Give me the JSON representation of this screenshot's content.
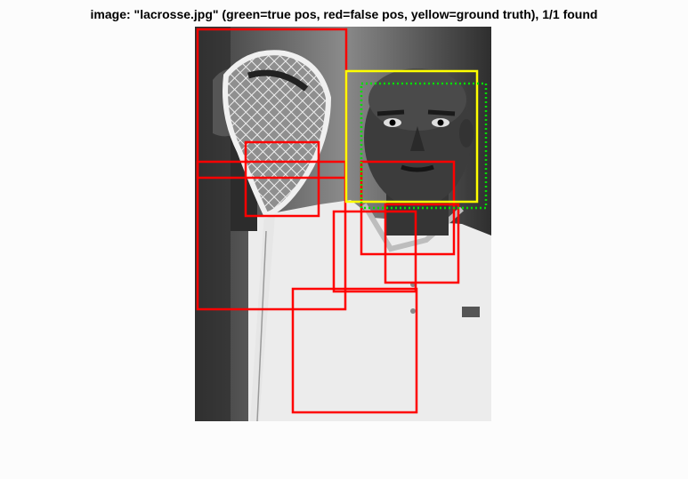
{
  "figure": {
    "title": "image: \"lacrosse.jpg\" (green=true pos, red=false pos, yellow=ground truth), 1/1 found"
  },
  "colors": {
    "true_pos": "#00dd00",
    "false_pos": "#ff0000",
    "ground_truth": "#ffff00",
    "background": "#fcfcfc"
  },
  "photo": {
    "description_icons": [
      "lacrosse-stick-head-icon",
      "person-face-icon",
      "white-shirt-icon"
    ]
  }
}
